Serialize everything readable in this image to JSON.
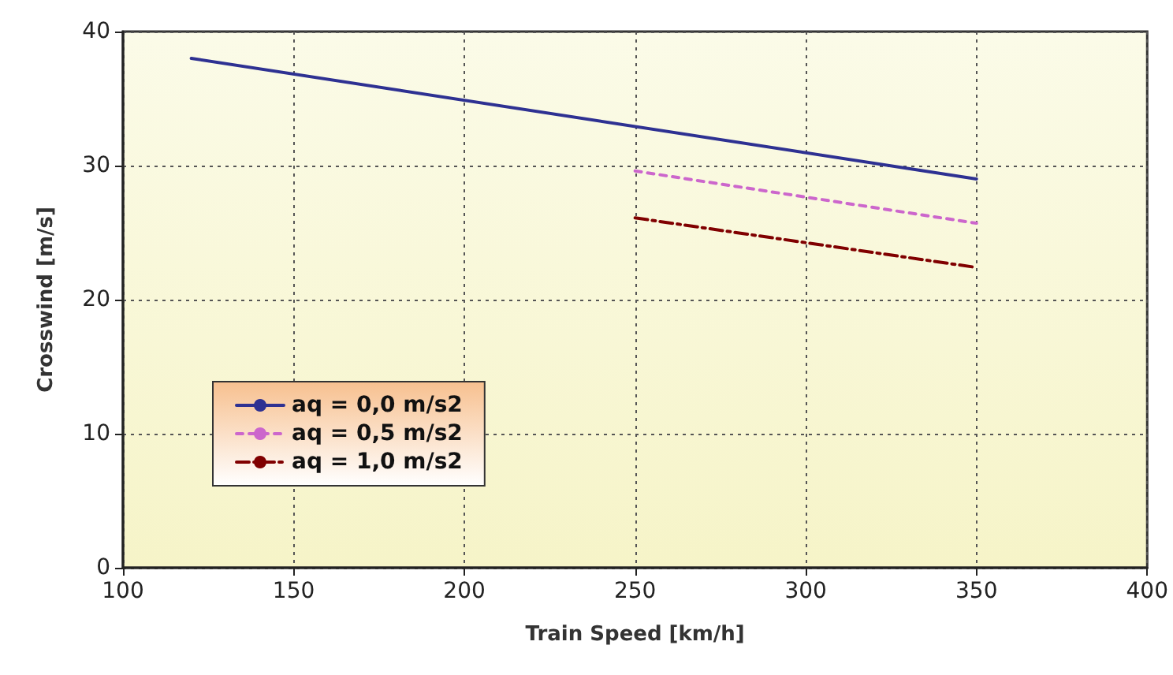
{
  "chart_data": {
    "type": "line",
    "xlabel": "Train Speed [km/h]",
    "ylabel": "Crosswind [m/s]",
    "xlim": [
      100,
      400
    ],
    "xticks": [
      100,
      150,
      200,
      250,
      300,
      350,
      400
    ],
    "ylim": [
      0,
      40
    ],
    "yticks": [
      0,
      10,
      20,
      30,
      40
    ],
    "grid": true,
    "legend": "left",
    "marker": "none",
    "series": [
      {
        "name": "aq = 0,0 m/s2",
        "color": "#2e3192",
        "line_style": "solid",
        "x": [
          120,
          350
        ],
        "values": [
          38.0,
          29.0
        ]
      },
      {
        "name": "aq = 0,5 m/s2",
        "color": "#cc66cc",
        "line_style": "dashed",
        "x": [
          250,
          350
        ],
        "values": [
          29.6,
          25.7
        ]
      },
      {
        "name": "aq = 1,0 m/s2",
        "color": "#800000",
        "line_style": "dashdot",
        "x": [
          250,
          350
        ],
        "values": [
          26.1,
          22.4
        ]
      }
    ]
  }
}
